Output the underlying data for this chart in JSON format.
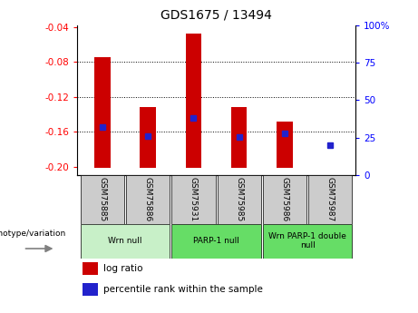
{
  "title": "GDS1675 / 13494",
  "samples": [
    "GSM75885",
    "GSM75886",
    "GSM75931",
    "GSM75985",
    "GSM75986",
    "GSM75987"
  ],
  "bar_tops": [
    -0.075,
    -0.132,
    -0.048,
    -0.132,
    -0.148,
    -0.202
  ],
  "bar_bottom": -0.202,
  "percentile_ranks_pct": [
    28,
    22,
    35,
    21,
    24,
    15
  ],
  "ylim_left": [
    -0.21,
    -0.038
  ],
  "ylim_right": [
    0,
    100
  ],
  "yticks_left": [
    -0.2,
    -0.16,
    -0.12,
    -0.08,
    -0.04
  ],
  "yticks_right": [
    0,
    25,
    50,
    75,
    100
  ],
  "bar_color": "#cc0000",
  "dot_color": "#2222cc",
  "group_positions": [
    {
      "start": 0,
      "end": 1,
      "color": "#c8f0c8",
      "label": "Wrn null"
    },
    {
      "start": 2,
      "end": 3,
      "color": "#66dd66",
      "label": "PARP-1 null"
    },
    {
      "start": 4,
      "end": 5,
      "color": "#66dd66",
      "label": "Wrn PARP-1 double\nnull"
    }
  ],
  "legend_bar_label": "log ratio",
  "legend_dot_label": "percentile rank within the sample",
  "genotype_label": "genotype/variation",
  "grid_lines": [
    -0.08,
    -0.12,
    -0.16
  ],
  "bar_width": 0.35
}
